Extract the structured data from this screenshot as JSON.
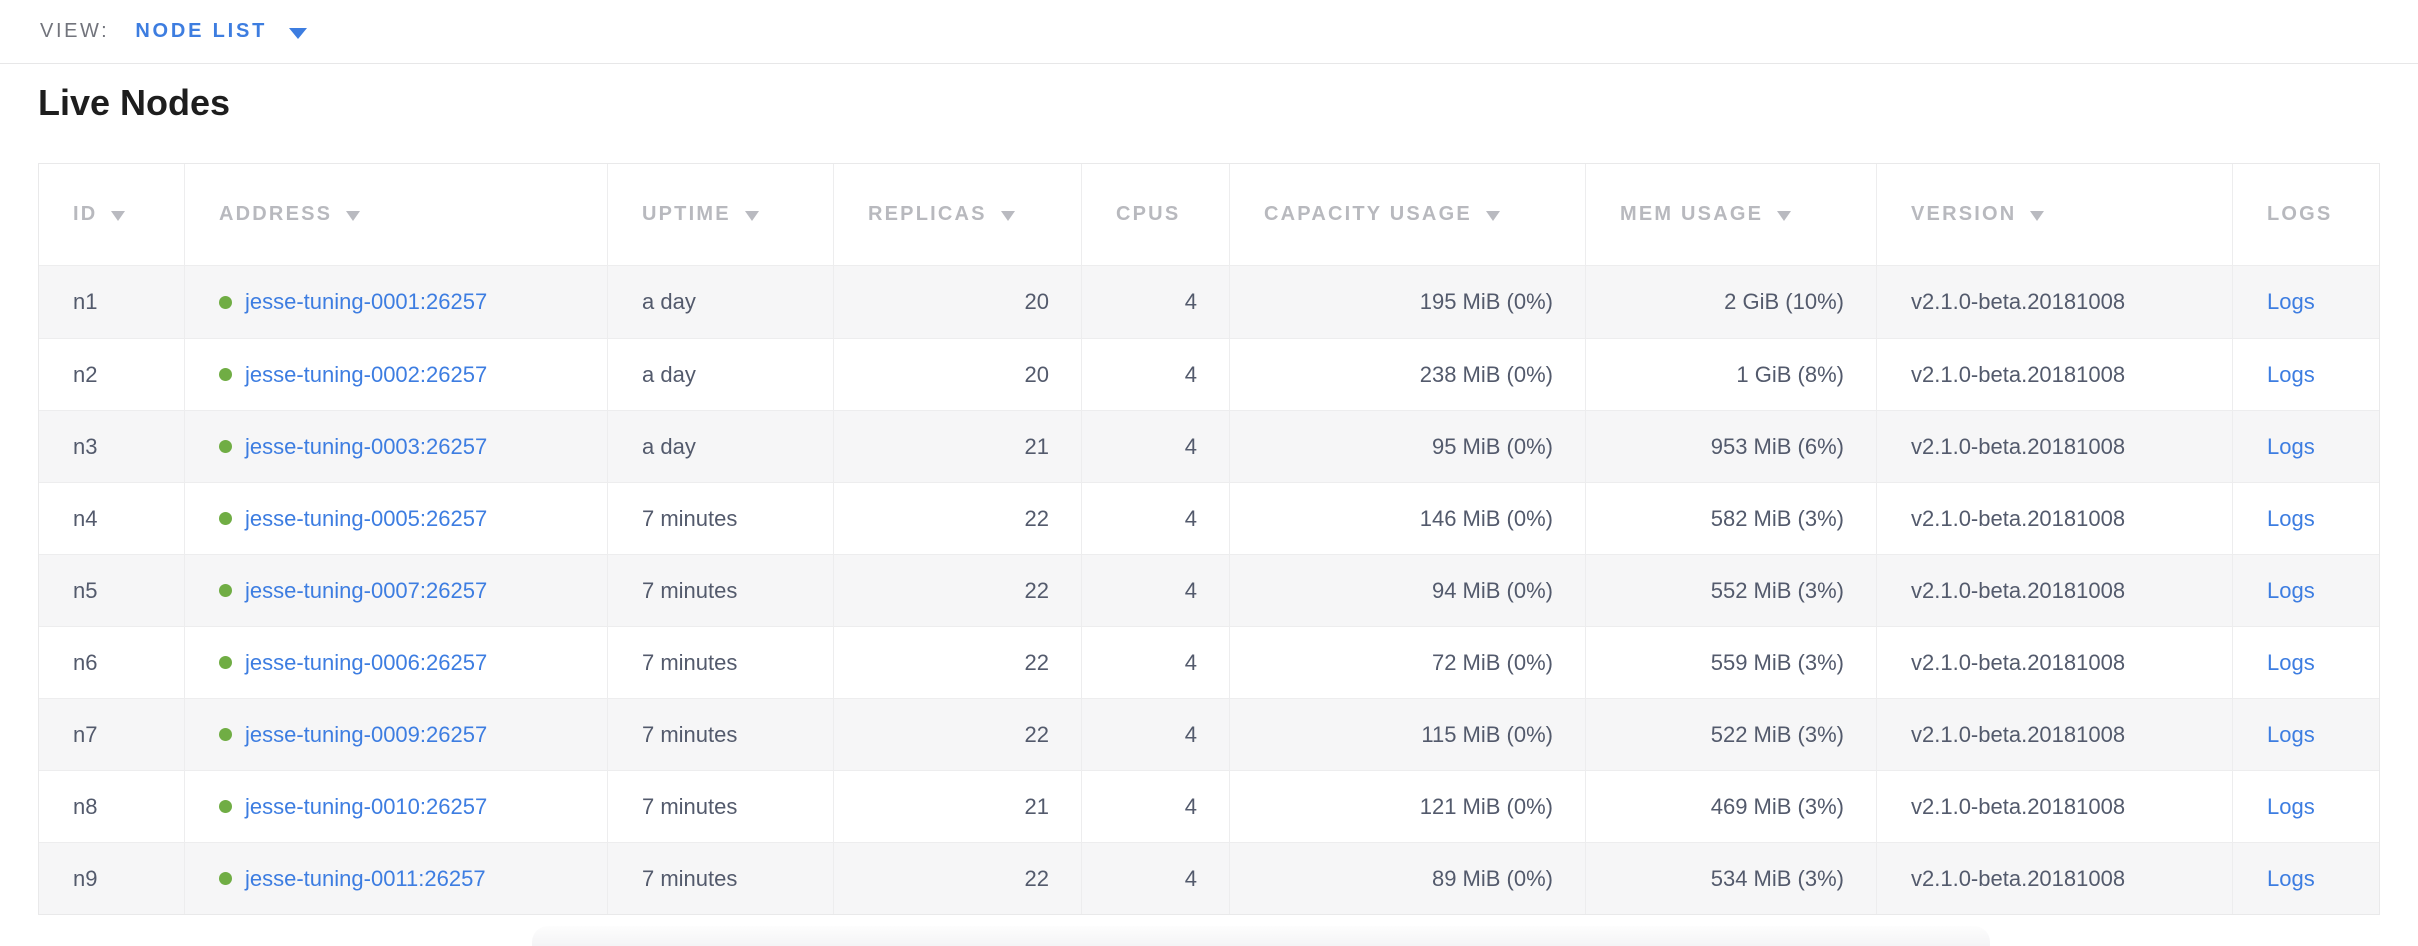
{
  "view_bar": {
    "label": "VIEW:",
    "selected": "NODE LIST"
  },
  "page": {
    "title": "Live Nodes"
  },
  "colors": {
    "link_blue": "#3d7de1",
    "live_green": "#70ad44",
    "header_gray": "#b8b9be",
    "body_text": "#535a6c",
    "alt_row_bg": "#f6f6f7"
  },
  "table": {
    "columns": [
      {
        "label": "ID",
        "sortable": true
      },
      {
        "label": "ADDRESS",
        "sortable": true
      },
      {
        "label": "UPTIME",
        "sortable": true
      },
      {
        "label": "REPLICAS",
        "sortable": true
      },
      {
        "label": "CPUS",
        "sortable": false
      },
      {
        "label": "CAPACITY USAGE",
        "sortable": true
      },
      {
        "label": "MEM USAGE",
        "sortable": true
      },
      {
        "label": "VERSION",
        "sortable": true
      },
      {
        "label": "LOGS",
        "sortable": false
      }
    ],
    "rows": [
      {
        "id": "n1",
        "address": "jesse-tuning-0001:26257",
        "status": "live",
        "uptime": "a day",
        "replicas": "20",
        "cpus": "4",
        "capacity_usage": "195 MiB (0%)",
        "mem_usage": "2 GiB (10%)",
        "version": "v2.1.0-beta.20181008",
        "logs_label": "Logs"
      },
      {
        "id": "n2",
        "address": "jesse-tuning-0002:26257",
        "status": "live",
        "uptime": "a day",
        "replicas": "20",
        "cpus": "4",
        "capacity_usage": "238 MiB (0%)",
        "mem_usage": "1 GiB (8%)",
        "version": "v2.1.0-beta.20181008",
        "logs_label": "Logs"
      },
      {
        "id": "n3",
        "address": "jesse-tuning-0003:26257",
        "status": "live",
        "uptime": "a day",
        "replicas": "21",
        "cpus": "4",
        "capacity_usage": "95 MiB (0%)",
        "mem_usage": "953 MiB (6%)",
        "version": "v2.1.0-beta.20181008",
        "logs_label": "Logs"
      },
      {
        "id": "n4",
        "address": "jesse-tuning-0005:26257",
        "status": "live",
        "uptime": "7 minutes",
        "replicas": "22",
        "cpus": "4",
        "capacity_usage": "146 MiB (0%)",
        "mem_usage": "582 MiB (3%)",
        "version": "v2.1.0-beta.20181008",
        "logs_label": "Logs"
      },
      {
        "id": "n5",
        "address": "jesse-tuning-0007:26257",
        "status": "live",
        "uptime": "7 minutes",
        "replicas": "22",
        "cpus": "4",
        "capacity_usage": "94 MiB (0%)",
        "mem_usage": "552 MiB (3%)",
        "version": "v2.1.0-beta.20181008",
        "logs_label": "Logs"
      },
      {
        "id": "n6",
        "address": "jesse-tuning-0006:26257",
        "status": "live",
        "uptime": "7 minutes",
        "replicas": "22",
        "cpus": "4",
        "capacity_usage": "72 MiB (0%)",
        "mem_usage": "559 MiB (3%)",
        "version": "v2.1.0-beta.20181008",
        "logs_label": "Logs"
      },
      {
        "id": "n7",
        "address": "jesse-tuning-0009:26257",
        "status": "live",
        "uptime": "7 minutes",
        "replicas": "22",
        "cpus": "4",
        "capacity_usage": "115 MiB (0%)",
        "mem_usage": "522 MiB (3%)",
        "version": "v2.1.0-beta.20181008",
        "logs_label": "Logs"
      },
      {
        "id": "n8",
        "address": "jesse-tuning-0010:26257",
        "status": "live",
        "uptime": "7 minutes",
        "replicas": "21",
        "cpus": "4",
        "capacity_usage": "121 MiB (0%)",
        "mem_usage": "469 MiB (3%)",
        "version": "v2.1.0-beta.20181008",
        "logs_label": "Logs"
      },
      {
        "id": "n9",
        "address": "jesse-tuning-0011:26257",
        "status": "live",
        "uptime": "7 minutes",
        "replicas": "22",
        "cpus": "4",
        "capacity_usage": "89 MiB (0%)",
        "mem_usage": "534 MiB (3%)",
        "version": "v2.1.0-beta.20181008",
        "logs_label": "Logs"
      }
    ]
  }
}
